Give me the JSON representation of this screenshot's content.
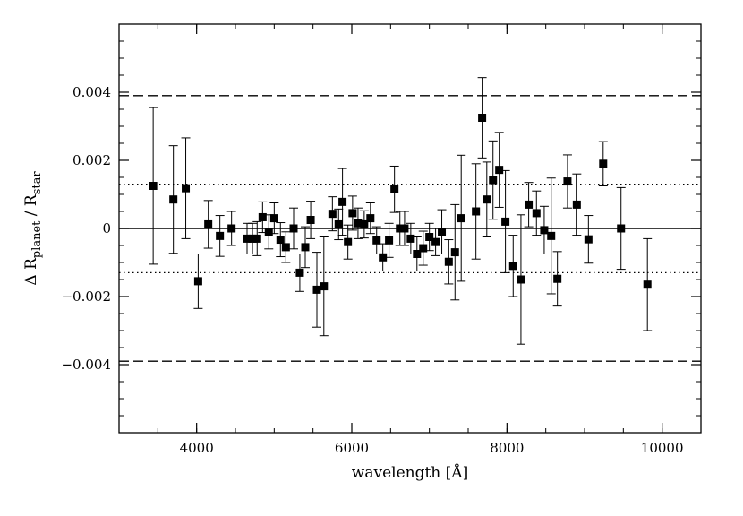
{
  "chart_data": {
    "type": "scatter",
    "xlabel": "wavelength [Å]",
    "ylabel": {
      "prefix": "Δ R",
      "sub1": "planet",
      "middle": " / R",
      "sub2": "star"
    },
    "xlim": [
      3000,
      10500
    ],
    "ylim": [
      -0.006,
      0.006
    ],
    "x_ticks": [
      4000,
      6000,
      8000,
      10000
    ],
    "x_tick_labels": [
      "4000",
      "6000",
      "8000",
      "10000"
    ],
    "y_ticks": [
      -0.004,
      -0.002,
      0,
      0.002,
      0.004
    ],
    "y_tick_labels": [
      "−0.004",
      "−0.002",
      "0",
      "0.002",
      "0.004"
    ],
    "reference_lines": [
      {
        "y": 0,
        "style": "solid"
      },
      {
        "y": 0.0013,
        "style": "dotted"
      },
      {
        "y": -0.0013,
        "style": "dotted"
      },
      {
        "y": 0.0039,
        "style": "dashed"
      },
      {
        "y": -0.0039,
        "style": "dashed"
      }
    ],
    "grid": false,
    "marker_color": "#000000",
    "points": [
      {
        "x": 3440,
        "y": 0.00125,
        "err": 0.0023
      },
      {
        "x": 3700,
        "y": 0.00085,
        "err": 0.00158
      },
      {
        "x": 3860,
        "y": 0.00118,
        "err": 0.00148
      },
      {
        "x": 4020,
        "y": -0.00155,
        "err": 0.0008
      },
      {
        "x": 4150,
        "y": 0.00012,
        "err": 0.0007
      },
      {
        "x": 4300,
        "y": -0.00022,
        "err": 0.0006
      },
      {
        "x": 4450,
        "y": 0.0,
        "err": 0.0005
      },
      {
        "x": 4650,
        "y": -0.0003,
        "err": 0.00045
      },
      {
        "x": 4720,
        "y": -0.0003,
        "err": 0.00045
      },
      {
        "x": 4780,
        "y": -0.0003,
        "err": 0.0005
      },
      {
        "x": 4850,
        "y": 0.00033,
        "err": 0.00045
      },
      {
        "x": 4930,
        "y": -0.0001,
        "err": 0.0005
      },
      {
        "x": 5000,
        "y": 0.0003,
        "err": 0.00045
      },
      {
        "x": 5080,
        "y": -0.00033,
        "err": 0.0005
      },
      {
        "x": 5150,
        "y": -0.00055,
        "err": 0.00045
      },
      {
        "x": 5250,
        "y": 0.0,
        "err": 0.0006
      },
      {
        "x": 5330,
        "y": -0.0013,
        "err": 0.00055
      },
      {
        "x": 5400,
        "y": -0.00055,
        "err": 0.0006
      },
      {
        "x": 5470,
        "y": 0.00025,
        "err": 0.00055
      },
      {
        "x": 5550,
        "y": -0.0018,
        "err": 0.0011
      },
      {
        "x": 5640,
        "y": -0.0017,
        "err": 0.00145
      },
      {
        "x": 5750,
        "y": 0.00043,
        "err": 0.0005
      },
      {
        "x": 5830,
        "y": 0.00012,
        "err": 0.00045
      },
      {
        "x": 5880,
        "y": 0.00078,
        "err": 0.00098
      },
      {
        "x": 5950,
        "y": -0.0004,
        "err": 0.0005
      },
      {
        "x": 6010,
        "y": 0.00045,
        "err": 0.0005
      },
      {
        "x": 6080,
        "y": 0.00015,
        "err": 0.00045
      },
      {
        "x": 6160,
        "y": 0.00012,
        "err": 0.0004
      },
      {
        "x": 6240,
        "y": 0.0003,
        "err": 0.00045
      },
      {
        "x": 6320,
        "y": -0.00035,
        "err": 0.0004
      },
      {
        "x": 6400,
        "y": -0.00085,
        "err": 0.0004
      },
      {
        "x": 6480,
        "y": -0.00035,
        "err": 0.0005
      },
      {
        "x": 6550,
        "y": 0.00115,
        "err": 0.00068
      },
      {
        "x": 6620,
        "y": 0.0,
        "err": 0.0005
      },
      {
        "x": 6680,
        "y": 0.0,
        "err": 0.0005
      },
      {
        "x": 6760,
        "y": -0.0003,
        "err": 0.00045
      },
      {
        "x": 6840,
        "y": -0.00075,
        "err": 0.0005
      },
      {
        "x": 6920,
        "y": -0.00058,
        "err": 0.0005
      },
      {
        "x": 7000,
        "y": -0.00025,
        "err": 0.0004
      },
      {
        "x": 7080,
        "y": -0.0004,
        "err": 0.0004
      },
      {
        "x": 7160,
        "y": -0.0001,
        "err": 0.00065
      },
      {
        "x": 7250,
        "y": -0.00098,
        "err": 0.00065
      },
      {
        "x": 7330,
        "y": -0.0007,
        "err": 0.0014
      },
      {
        "x": 7410,
        "y": 0.0003,
        "err": 0.00185
      },
      {
        "x": 7600,
        "y": 0.0005,
        "err": 0.0014
      },
      {
        "x": 7680,
        "y": 0.00325,
        "err": 0.00118
      },
      {
        "x": 7740,
        "y": 0.00085,
        "err": 0.0011
      },
      {
        "x": 7820,
        "y": 0.00142,
        "err": 0.00115
      },
      {
        "x": 7900,
        "y": 0.00172,
        "err": 0.0011
      },
      {
        "x": 7980,
        "y": 0.0002,
        "err": 0.0015
      },
      {
        "x": 8080,
        "y": -0.0011,
        "err": 0.0009
      },
      {
        "x": 8180,
        "y": -0.0015,
        "err": 0.0019
      },
      {
        "x": 8280,
        "y": 0.0007,
        "err": 0.00065
      },
      {
        "x": 8380,
        "y": 0.00045,
        "err": 0.00065
      },
      {
        "x": 8480,
        "y": -5e-05,
        "err": 0.0007
      },
      {
        "x": 8570,
        "y": -0.00022,
        "err": 0.0017
      },
      {
        "x": 8650,
        "y": -0.00148,
        "err": 0.0008
      },
      {
        "x": 8780,
        "y": 0.00138,
        "err": 0.00078
      },
      {
        "x": 8900,
        "y": 0.0007,
        "err": 0.0009
      },
      {
        "x": 9050,
        "y": -0.00032,
        "err": 0.0007
      },
      {
        "x": 9240,
        "y": 0.0019,
        "err": 0.00065
      },
      {
        "x": 9470,
        "y": 0.0,
        "err": 0.0012
      },
      {
        "x": 9810,
        "y": -0.00165,
        "err": 0.00135
      }
    ]
  }
}
